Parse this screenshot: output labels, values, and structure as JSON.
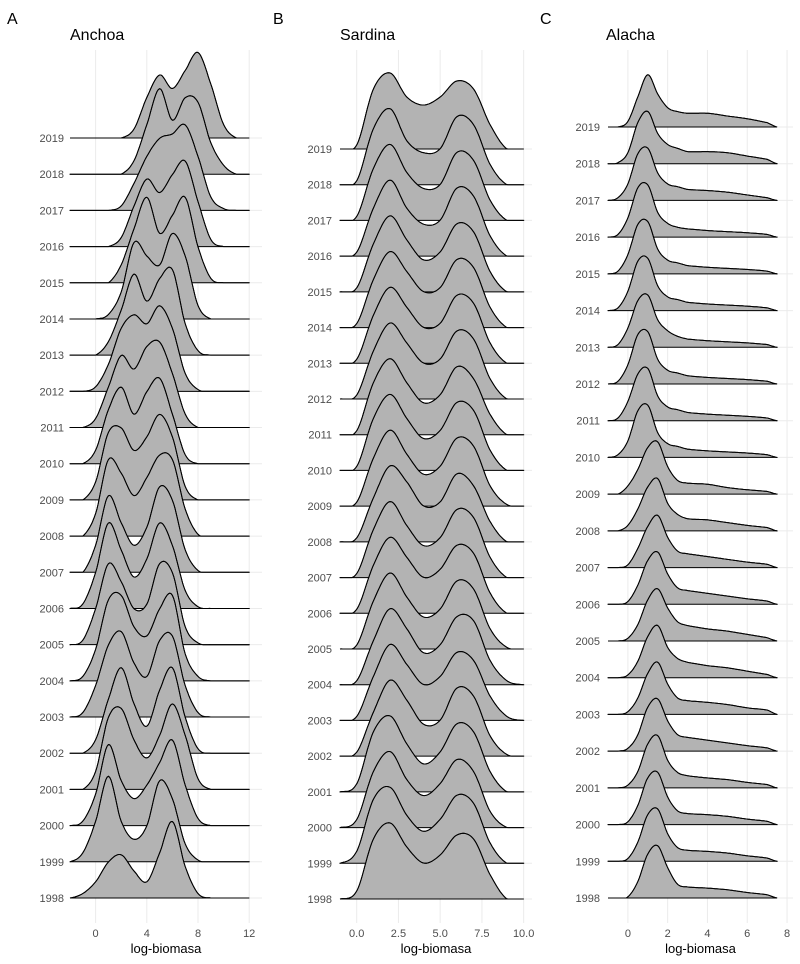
{
  "chart_data": [
    {
      "type": "ridgeline",
      "panel": "A",
      "title": "Anchoa",
      "xlabel": "log-biomasa",
      "xlim": [
        -2,
        13
      ],
      "xticks": [
        0,
        4,
        8,
        12
      ],
      "years": [
        1998,
        1999,
        2000,
        2001,
        2002,
        2003,
        2004,
        2005,
        2006,
        2007,
        2008,
        2009,
        2010,
        2011,
        2012,
        2013,
        2014,
        2015,
        2016,
        2017,
        2018,
        2019
      ],
      "density_x": [
        -2,
        -1,
        0,
        1,
        2,
        3,
        4,
        5,
        6,
        7,
        8,
        9,
        10,
        11,
        12
      ],
      "density": [
        [
          0.0,
          0.05,
          0.18,
          0.4,
          0.48,
          0.3,
          0.18,
          0.5,
          0.85,
          0.35,
          0.05,
          0.0,
          0.0,
          0.0,
          0.0
        ],
        [
          0.0,
          0.1,
          0.45,
          0.95,
          0.45,
          0.25,
          0.4,
          0.9,
          0.7,
          0.2,
          0.02,
          0.0,
          0.0,
          0.0,
          0.0
        ],
        [
          0.0,
          0.05,
          0.35,
          0.9,
          0.5,
          0.3,
          0.45,
          0.7,
          0.95,
          0.45,
          0.08,
          0.0,
          0.0,
          0.0,
          0.0
        ],
        [
          0.0,
          0.0,
          0.2,
          0.8,
          0.9,
          0.55,
          0.35,
          0.6,
          0.95,
          0.6,
          0.12,
          0.0,
          0.0,
          0.0,
          0.0
        ],
        [
          0.0,
          0.0,
          0.15,
          0.6,
          0.95,
          0.55,
          0.3,
          0.7,
          0.95,
          0.4,
          0.05,
          0.0,
          0.0,
          0.0,
          0.0
        ],
        [
          0.0,
          0.05,
          0.35,
          0.8,
          0.95,
          0.6,
          0.45,
          0.85,
          0.9,
          0.35,
          0.05,
          0.0,
          0.0,
          0.0,
          0.0
        ],
        [
          0.0,
          0.05,
          0.35,
          0.9,
          0.95,
          0.6,
          0.5,
          0.8,
          0.95,
          0.3,
          0.05,
          0.0,
          0.0,
          0.0,
          0.0
        ],
        [
          0.0,
          0.05,
          0.4,
          0.9,
          0.7,
          0.4,
          0.45,
          0.9,
          0.8,
          0.2,
          0.02,
          0.0,
          0.0,
          0.0,
          0.0
        ],
        [
          0.0,
          0.05,
          0.4,
          0.95,
          0.65,
          0.35,
          0.55,
          0.95,
          0.7,
          0.2,
          0.02,
          0.0,
          0.0,
          0.0,
          0.0
        ],
        [
          0.0,
          0.0,
          0.3,
          0.85,
          0.55,
          0.3,
          0.5,
          0.95,
          0.8,
          0.25,
          0.02,
          0.0,
          0.0,
          0.0,
          0.0
        ],
        [
          0.0,
          0.0,
          0.25,
          0.85,
          0.7,
          0.45,
          0.65,
          0.9,
          0.85,
          0.3,
          0.02,
          0.0,
          0.0,
          0.0,
          0.0
        ],
        [
          0.0,
          0.0,
          0.2,
          0.75,
          0.8,
          0.55,
          0.7,
          0.95,
          0.7,
          0.15,
          0.0,
          0.0,
          0.0,
          0.0,
          0.0
        ],
        [
          0.0,
          0.0,
          0.15,
          0.6,
          0.85,
          0.55,
          0.8,
          0.95,
          0.55,
          0.1,
          0.0,
          0.0,
          0.0,
          0.0,
          0.0
        ],
        [
          0.0,
          0.0,
          0.1,
          0.45,
          0.8,
          0.65,
          0.9,
          0.95,
          0.6,
          0.15,
          0.0,
          0.0,
          0.0,
          0.0,
          0.0
        ],
        [
          0.0,
          0.0,
          0.05,
          0.3,
          0.7,
          0.85,
          0.75,
          0.95,
          0.7,
          0.2,
          0.02,
          0.0,
          0.0,
          0.0,
          0.0
        ],
        [
          0.0,
          0.0,
          0.0,
          0.15,
          0.5,
          0.9,
          0.6,
          0.85,
          0.95,
          0.35,
          0.05,
          0.0,
          0.0,
          0.0,
          0.0
        ],
        [
          0.0,
          0.0,
          0.0,
          0.05,
          0.3,
          0.85,
          0.7,
          0.6,
          0.95,
          0.7,
          0.15,
          0.0,
          0.0,
          0.0,
          0.0
        ],
        [
          0.0,
          0.0,
          0.0,
          0.0,
          0.2,
          0.6,
          0.95,
          0.55,
          0.75,
          0.95,
          0.4,
          0.05,
          0.0,
          0.0,
          0.0
        ],
        [
          0.0,
          0.0,
          0.0,
          0.0,
          0.1,
          0.45,
          0.75,
          0.6,
          0.8,
          0.95,
          0.5,
          0.08,
          0.0,
          0.0,
          0.0
        ],
        [
          0.0,
          0.0,
          0.0,
          0.0,
          0.05,
          0.3,
          0.6,
          0.8,
          0.85,
          0.95,
          0.6,
          0.15,
          0.02,
          0.0,
          0.0
        ],
        [
          0.0,
          0.0,
          0.0,
          0.0,
          0.0,
          0.15,
          0.55,
          0.95,
          0.6,
          0.85,
          0.8,
          0.35,
          0.1,
          0.0,
          0.0
        ],
        [
          0.0,
          0.0,
          0.0,
          0.0,
          0.0,
          0.1,
          0.45,
          0.7,
          0.55,
          0.75,
          0.95,
          0.6,
          0.15,
          0.0,
          0.0
        ]
      ]
    },
    {
      "type": "ridgeline",
      "panel": "B",
      "title": "Sardina",
      "xlabel": "log-biomasa",
      "xlim": [
        -1,
        10.5
      ],
      "xticks": [
        0.0,
        2.5,
        5.0,
        7.5,
        10.0
      ],
      "years": [
        1998,
        1999,
        2000,
        2001,
        2002,
        2003,
        2004,
        2005,
        2006,
        2007,
        2008,
        2009,
        2010,
        2011,
        2012,
        2013,
        2014,
        2015,
        2016,
        2017,
        2018,
        2019
      ],
      "density_x": [
        -1,
        0,
        1,
        2,
        3,
        4,
        5,
        6,
        7,
        8,
        9,
        10
      ],
      "density": [
        [
          0.0,
          0.1,
          0.75,
          0.95,
          0.65,
          0.45,
          0.55,
          0.8,
          0.75,
          0.3,
          0.0,
          0.0
        ],
        [
          0.0,
          0.15,
          0.8,
          0.95,
          0.6,
          0.4,
          0.55,
          0.85,
          0.75,
          0.25,
          0.0,
          0.0
        ],
        [
          0.0,
          0.1,
          0.7,
          0.95,
          0.6,
          0.4,
          0.55,
          0.85,
          0.7,
          0.2,
          0.0,
          0.0
        ],
        [
          0.0,
          0.1,
          0.75,
          0.95,
          0.6,
          0.35,
          0.5,
          0.85,
          0.75,
          0.25,
          0.0,
          0.0
        ],
        [
          0.0,
          0.05,
          0.55,
          0.95,
          0.7,
          0.4,
          0.45,
          0.85,
          0.75,
          0.25,
          0.02,
          0.0
        ],
        [
          0.0,
          0.05,
          0.55,
          0.95,
          0.7,
          0.45,
          0.55,
          0.85,
          0.75,
          0.3,
          0.05,
          0.0
        ],
        [
          0.0,
          0.05,
          0.55,
          0.95,
          0.7,
          0.4,
          0.5,
          0.85,
          0.8,
          0.3,
          0.05,
          0.0
        ],
        [
          0.0,
          0.05,
          0.6,
          0.95,
          0.65,
          0.4,
          0.5,
          0.85,
          0.75,
          0.25,
          0.02,
          0.0
        ],
        [
          0.0,
          0.05,
          0.6,
          0.95,
          0.7,
          0.45,
          0.55,
          0.85,
          0.75,
          0.25,
          0.0,
          0.0
        ],
        [
          0.0,
          0.05,
          0.6,
          0.95,
          0.65,
          0.4,
          0.5,
          0.85,
          0.75,
          0.25,
          0.0,
          0.0
        ],
        [
          0.0,
          0.05,
          0.55,
          0.95,
          0.75,
          0.45,
          0.5,
          0.85,
          0.7,
          0.25,
          0.0,
          0.0
        ],
        [
          0.0,
          0.05,
          0.6,
          0.95,
          0.65,
          0.4,
          0.5,
          0.85,
          0.75,
          0.25,
          0.02,
          0.0
        ],
        [
          0.0,
          0.05,
          0.65,
          0.95,
          0.65,
          0.4,
          0.5,
          0.85,
          0.75,
          0.25,
          0.0,
          0.0
        ],
        [
          0.0,
          0.05,
          0.65,
          0.95,
          0.65,
          0.4,
          0.5,
          0.85,
          0.7,
          0.25,
          0.0,
          0.0
        ],
        [
          0.0,
          0.05,
          0.6,
          0.95,
          0.7,
          0.45,
          0.5,
          0.85,
          0.75,
          0.25,
          0.0,
          0.0
        ],
        [
          0.0,
          0.05,
          0.6,
          0.95,
          0.7,
          0.45,
          0.5,
          0.85,
          0.75,
          0.25,
          0.0,
          0.0
        ],
        [
          0.0,
          0.05,
          0.6,
          0.95,
          0.7,
          0.45,
          0.5,
          0.85,
          0.75,
          0.25,
          0.0,
          0.0
        ],
        [
          0.0,
          0.05,
          0.6,
          0.95,
          0.65,
          0.4,
          0.5,
          0.85,
          0.75,
          0.25,
          0.0,
          0.0
        ],
        [
          0.0,
          0.05,
          0.6,
          0.95,
          0.6,
          0.4,
          0.45,
          0.85,
          0.75,
          0.25,
          0.0,
          0.0
        ],
        [
          0.0,
          0.05,
          0.65,
          0.95,
          0.6,
          0.4,
          0.45,
          0.85,
          0.75,
          0.25,
          0.0,
          0.0
        ],
        [
          0.0,
          0.05,
          0.7,
          0.95,
          0.55,
          0.4,
          0.45,
          0.85,
          0.75,
          0.25,
          0.0,
          0.0
        ],
        [
          0.0,
          0.05,
          0.75,
          0.95,
          0.65,
          0.55,
          0.65,
          0.85,
          0.75,
          0.3,
          0.0,
          0.0
        ]
      ]
    },
    {
      "type": "ridgeline",
      "panel": "C",
      "title": "Alacha",
      "xlabel": "log-biomasa",
      "xlim": [
        -1,
        8.3
      ],
      "xticks": [
        0,
        2,
        4,
        6,
        8
      ],
      "years": [
        1998,
        1999,
        2000,
        2001,
        2002,
        2003,
        2004,
        2005,
        2006,
        2007,
        2008,
        2009,
        2010,
        2011,
        2012,
        2013,
        2014,
        2015,
        2016,
        2017,
        2018,
        2019
      ],
      "density_x": [
        -1,
        -0.5,
        0,
        0.5,
        1,
        1.5,
        2,
        2.5,
        3,
        4,
        5,
        6,
        7,
        7.5
      ],
      "density": [
        [
          0.0,
          0.0,
          0.02,
          0.3,
          0.8,
          0.95,
          0.55,
          0.25,
          0.2,
          0.18,
          0.15,
          0.1,
          0.06,
          0.0
        ],
        [
          0.0,
          0.0,
          0.05,
          0.35,
          0.85,
          0.95,
          0.5,
          0.25,
          0.2,
          0.18,
          0.15,
          0.1,
          0.06,
          0.0
        ],
        [
          0.0,
          0.0,
          0.05,
          0.35,
          0.85,
          0.95,
          0.5,
          0.25,
          0.2,
          0.18,
          0.15,
          0.1,
          0.06,
          0.0
        ],
        [
          0.0,
          0.0,
          0.05,
          0.3,
          0.8,
          0.95,
          0.5,
          0.28,
          0.22,
          0.18,
          0.15,
          0.1,
          0.06,
          0.0
        ],
        [
          0.0,
          0.0,
          0.05,
          0.3,
          0.8,
          0.95,
          0.55,
          0.3,
          0.25,
          0.2,
          0.15,
          0.1,
          0.06,
          0.0
        ],
        [
          0.0,
          0.0,
          0.05,
          0.3,
          0.75,
          0.95,
          0.55,
          0.3,
          0.25,
          0.22,
          0.18,
          0.12,
          0.08,
          0.0
        ],
        [
          0.0,
          0.0,
          0.05,
          0.3,
          0.75,
          0.95,
          0.55,
          0.35,
          0.28,
          0.22,
          0.18,
          0.12,
          0.06,
          0.0
        ],
        [
          0.0,
          0.0,
          0.05,
          0.3,
          0.75,
          0.95,
          0.6,
          0.35,
          0.28,
          0.22,
          0.18,
          0.12,
          0.06,
          0.0
        ],
        [
          0.0,
          0.0,
          0.05,
          0.35,
          0.8,
          0.95,
          0.55,
          0.3,
          0.25,
          0.2,
          0.15,
          0.1,
          0.06,
          0.0
        ],
        [
          0.0,
          0.0,
          0.05,
          0.35,
          0.75,
          0.95,
          0.55,
          0.3,
          0.25,
          0.2,
          0.15,
          0.1,
          0.06,
          0.0
        ],
        [
          0.0,
          0.0,
          0.1,
          0.4,
          0.8,
          0.95,
          0.5,
          0.3,
          0.22,
          0.2,
          0.15,
          0.1,
          0.06,
          0.0
        ],
        [
          0.0,
          0.0,
          0.15,
          0.45,
          0.85,
          0.95,
          0.5,
          0.25,
          0.2,
          0.18,
          0.12,
          0.08,
          0.05,
          0.0
        ],
        [
          0.0,
          0.05,
          0.3,
          0.85,
          0.95,
          0.45,
          0.25,
          0.2,
          0.15,
          0.12,
          0.1,
          0.08,
          0.05,
          0.0
        ],
        [
          0.0,
          0.05,
          0.35,
          0.85,
          0.95,
          0.45,
          0.25,
          0.2,
          0.15,
          0.12,
          0.1,
          0.08,
          0.05,
          0.0
        ],
        [
          0.0,
          0.05,
          0.35,
          0.9,
          0.95,
          0.45,
          0.25,
          0.2,
          0.15,
          0.12,
          0.1,
          0.08,
          0.05,
          0.0
        ],
        [
          0.0,
          0.05,
          0.35,
          0.85,
          0.95,
          0.5,
          0.3,
          0.2,
          0.15,
          0.12,
          0.1,
          0.08,
          0.05,
          0.0
        ],
        [
          0.0,
          0.05,
          0.35,
          0.9,
          0.95,
          0.45,
          0.25,
          0.2,
          0.15,
          0.12,
          0.1,
          0.08,
          0.05,
          0.0
        ],
        [
          0.0,
          0.05,
          0.35,
          0.9,
          0.95,
          0.45,
          0.25,
          0.2,
          0.15,
          0.12,
          0.1,
          0.08,
          0.05,
          0.0
        ],
        [
          0.0,
          0.05,
          0.35,
          0.9,
          0.95,
          0.45,
          0.25,
          0.18,
          0.15,
          0.12,
          0.1,
          0.08,
          0.05,
          0.0
        ],
        [
          0.0,
          0.05,
          0.3,
          0.85,
          0.95,
          0.5,
          0.3,
          0.25,
          0.2,
          0.18,
          0.15,
          0.1,
          0.05,
          0.0
        ],
        [
          0.0,
          0.02,
          0.2,
          0.75,
          0.95,
          0.55,
          0.35,
          0.28,
          0.22,
          0.22,
          0.2,
          0.14,
          0.08,
          0.0
        ],
        [
          0.0,
          0.0,
          0.1,
          0.55,
          0.95,
          0.6,
          0.35,
          0.28,
          0.25,
          0.25,
          0.2,
          0.15,
          0.08,
          0.0
        ]
      ]
    }
  ]
}
